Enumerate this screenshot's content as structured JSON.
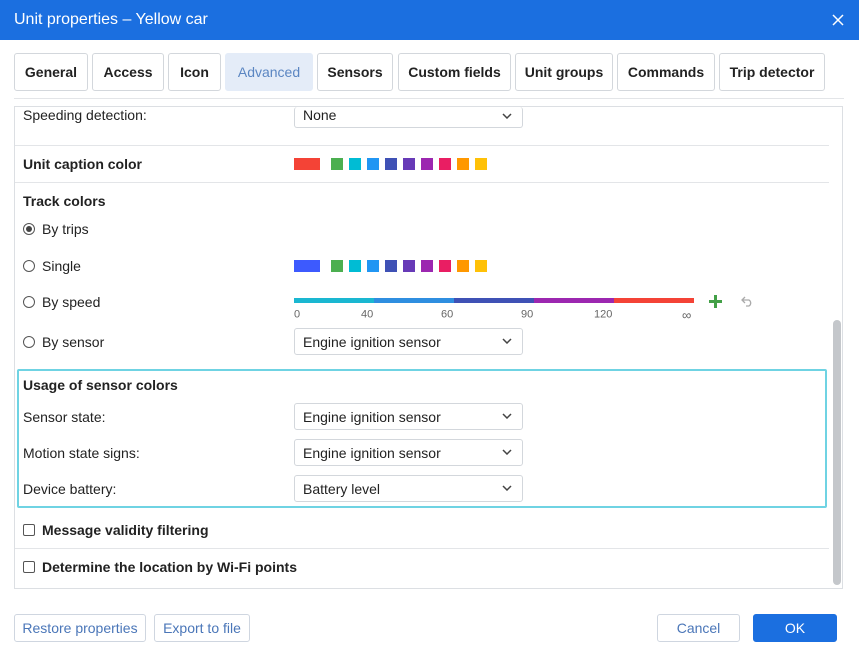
{
  "dialog": {
    "title": "Unit properties – Yellow car"
  },
  "tabs": [
    "General",
    "Access",
    "Icon",
    "Advanced",
    "Sensors",
    "Custom fields",
    "Unit groups",
    "Commands",
    "Trip detector"
  ],
  "speeding": {
    "label": "Speeding detection:",
    "value": "None"
  },
  "caption_color": {
    "label": "Unit caption color"
  },
  "track_colors": {
    "title": "Track colors",
    "options": [
      "By trips",
      "Single",
      "By speed",
      "By sensor"
    ],
    "speed_scale": [
      0,
      40,
      60,
      90,
      120,
      "∞"
    ],
    "sensor": "Engine ignition sensor"
  },
  "sensor_colors": {
    "title": "Usage of sensor colors",
    "rows": [
      [
        "Sensor state:",
        "Engine ignition sensor"
      ],
      [
        "Motion state signs:",
        "Engine ignition sensor"
      ],
      [
        "Device battery:",
        "Battery level"
      ]
    ]
  },
  "checkboxes": [
    "Message validity filtering",
    "Determine the location by Wi-Fi points"
  ],
  "footer": {
    "buttons": [
      "Restore properties",
      "Export to file",
      "Cancel",
      "OK"
    ]
  }
}
